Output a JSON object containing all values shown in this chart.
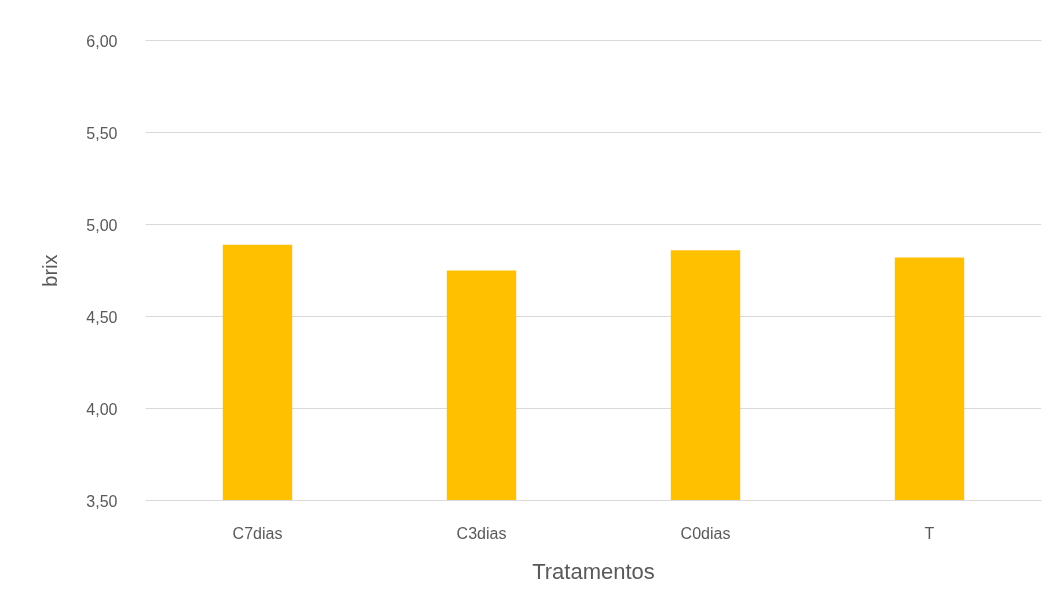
{
  "chart_data": {
    "type": "bar",
    "xlabel": "Tratamentos",
    "ylabel": "brix",
    "categories": [
      "C7dias",
      "C3dias",
      "C0dias",
      "T"
    ],
    "values": [
      4.89,
      4.75,
      4.86,
      4.82
    ],
    "color": "#ffc000",
    "ylim": [
      3.5,
      6.0
    ],
    "yticks": [
      {
        "value": 3.5,
        "label": "3,50"
      },
      {
        "value": 4.0,
        "label": "4,00"
      },
      {
        "value": 4.5,
        "label": "4,50"
      },
      {
        "value": 5.0,
        "label": "5,00"
      },
      {
        "value": 5.5,
        "label": "5,50"
      },
      {
        "value": 6.0,
        "label": "6,00"
      }
    ],
    "grid": "y"
  }
}
